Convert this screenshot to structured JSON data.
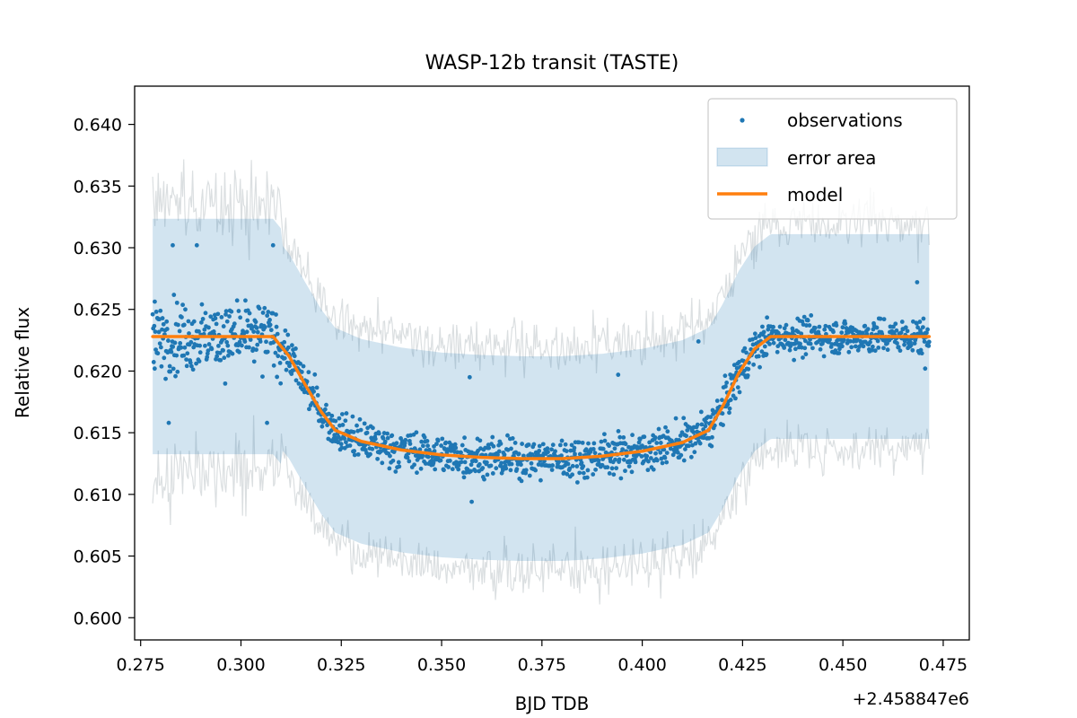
{
  "chart_data": {
    "type": "scatter",
    "title": "WASP-12b transit (TASTE)",
    "xlabel": "BJD TDB",
    "ylabel": "Relative flux",
    "x_offset_label": "+2.458847e6",
    "x_offset": 2458847,
    "xlim": [
      0.2735,
      0.4815
    ],
    "ylim": [
      0.5982,
      0.6431
    ],
    "x_ticks": [
      0.275,
      0.3,
      0.325,
      0.35,
      0.375,
      0.4,
      0.425,
      0.45,
      0.475
    ],
    "x_tick_labels": [
      "0.275",
      "0.300",
      "0.325",
      "0.350",
      "0.375",
      "0.400",
      "0.425",
      "0.450",
      "0.475"
    ],
    "y_ticks": [
      0.6,
      0.605,
      0.61,
      0.615,
      0.62,
      0.625,
      0.63,
      0.635,
      0.64
    ],
    "y_tick_labels": [
      "0.600",
      "0.605",
      "0.610",
      "0.615",
      "0.620",
      "0.625",
      "0.630",
      "0.635",
      "0.640"
    ],
    "grid": false,
    "legend_position": "top-right",
    "series": [
      {
        "name": "observations",
        "kind": "points",
        "color": "#1f77b4",
        "x_range": [
          0.278,
          0.4715
        ],
        "samples": [
          {
            "x": 0.278,
            "y": 0.6235
          },
          {
            "x": 0.285,
            "y": 0.6245
          },
          {
            "x": 0.295,
            "y": 0.6238
          },
          {
            "x": 0.305,
            "y": 0.6228
          },
          {
            "x": 0.31,
            "y": 0.6225
          },
          {
            "x": 0.315,
            "y": 0.6212
          },
          {
            "x": 0.32,
            "y": 0.6175
          },
          {
            "x": 0.325,
            "y": 0.6152
          },
          {
            "x": 0.33,
            "y": 0.6145
          },
          {
            "x": 0.34,
            "y": 0.6138
          },
          {
            "x": 0.35,
            "y": 0.6134
          },
          {
            "x": 0.36,
            "y": 0.6131
          },
          {
            "x": 0.375,
            "y": 0.613
          },
          {
            "x": 0.39,
            "y": 0.6132
          },
          {
            "x": 0.4,
            "y": 0.6136
          },
          {
            "x": 0.41,
            "y": 0.6142
          },
          {
            "x": 0.415,
            "y": 0.6148
          },
          {
            "x": 0.42,
            "y": 0.6185
          },
          {
            "x": 0.425,
            "y": 0.621
          },
          {
            "x": 0.43,
            "y": 0.6225
          },
          {
            "x": 0.44,
            "y": 0.6232
          },
          {
            "x": 0.45,
            "y": 0.6232
          },
          {
            "x": 0.46,
            "y": 0.6233
          },
          {
            "x": 0.4715,
            "y": 0.6232
          }
        ],
        "outliers": [
          {
            "x": 0.2785,
            "y": 0.6202
          },
          {
            "x": 0.282,
            "y": 0.6158
          },
          {
            "x": 0.283,
            "y": 0.6302
          },
          {
            "x": 0.289,
            "y": 0.6302
          },
          {
            "x": 0.3065,
            "y": 0.6158
          },
          {
            "x": 0.308,
            "y": 0.6302
          },
          {
            "x": 0.357,
            "y": 0.6195
          },
          {
            "x": 0.3575,
            "y": 0.6094
          },
          {
            "x": 0.394,
            "y": 0.6197
          },
          {
            "x": 0.414,
            "y": 0.6224
          },
          {
            "x": 0.4705,
            "y": 0.6202
          },
          {
            "x": 0.4685,
            "y": 0.6272
          }
        ]
      },
      {
        "name": "error area",
        "kind": "band",
        "color": "#1f77b4",
        "opacity": 0.2,
        "half_width_approx": 0.0083
      },
      {
        "name": "model",
        "kind": "line",
        "color": "#ff7f0e",
        "x": [
          0.278,
          0.308,
          0.312,
          0.316,
          0.32,
          0.3235,
          0.33,
          0.34,
          0.35,
          0.36,
          0.37,
          0.375,
          0.38,
          0.39,
          0.4,
          0.41,
          0.4165,
          0.42,
          0.424,
          0.428,
          0.432,
          0.4715
        ],
        "y": [
          0.6228,
          0.6228,
          0.6212,
          0.6189,
          0.6167,
          0.6152,
          0.6143,
          0.6136,
          0.6132,
          0.613,
          0.6129,
          0.6129,
          0.6129,
          0.6131,
          0.6135,
          0.6142,
          0.6152,
          0.6171,
          0.6198,
          0.6218,
          0.6228,
          0.6228
        ]
      }
    ]
  }
}
